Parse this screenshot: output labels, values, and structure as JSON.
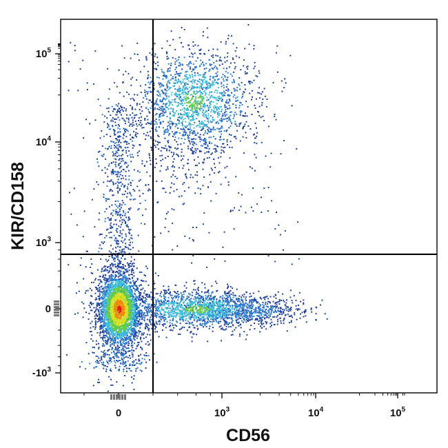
{
  "chart_data": {
    "type": "scatter",
    "title": "",
    "xlabel": "CD56",
    "ylabel": "KIR/CD158",
    "x_scale": "biexponential",
    "y_scale": "biexponential",
    "x_ticks": [
      {
        "value": 0,
        "base": "0",
        "exp": ""
      },
      {
        "value": 1000,
        "base": "10",
        "exp": "3"
      },
      {
        "value": 10000,
        "base": "10",
        "exp": "4"
      },
      {
        "value": 100000,
        "base": "10",
        "exp": "5"
      }
    ],
    "y_ticks": [
      {
        "value": -1000,
        "base": "-10",
        "exp": "3"
      },
      {
        "value": 0,
        "base": "0",
        "exp": ""
      },
      {
        "value": 1000,
        "base": "10",
        "exp": "3"
      },
      {
        "value": 10000,
        "base": "10",
        "exp": "4"
      },
      {
        "value": 100000,
        "base": "10",
        "exp": "5"
      }
    ],
    "gates": {
      "x_threshold": 200,
      "y_threshold": 700
    },
    "density_colors": [
      "#1f3f9c",
      "#2a7fd4",
      "#3cc0d8",
      "#66cc44",
      "#d8e020",
      "#f08a10",
      "#e01818"
    ],
    "populations": [
      {
        "quadrant": "lower-left",
        "x_center": 0,
        "y_center": 0,
        "relative_size": "largest",
        "peak_color": "red"
      },
      {
        "quadrant": "lower-right",
        "x_center": 800,
        "y_center": 0,
        "relative_size": "medium",
        "peak_color": "cyan"
      },
      {
        "quadrant": "upper-right",
        "x_center": 800,
        "y_center": 18000,
        "relative_size": "medium",
        "peak_color": "cyan"
      },
      {
        "quadrant": "upper-left",
        "x_center": 0,
        "y_center": 5000,
        "relative_size": "small",
        "peak_color": "blue"
      }
    ]
  }
}
